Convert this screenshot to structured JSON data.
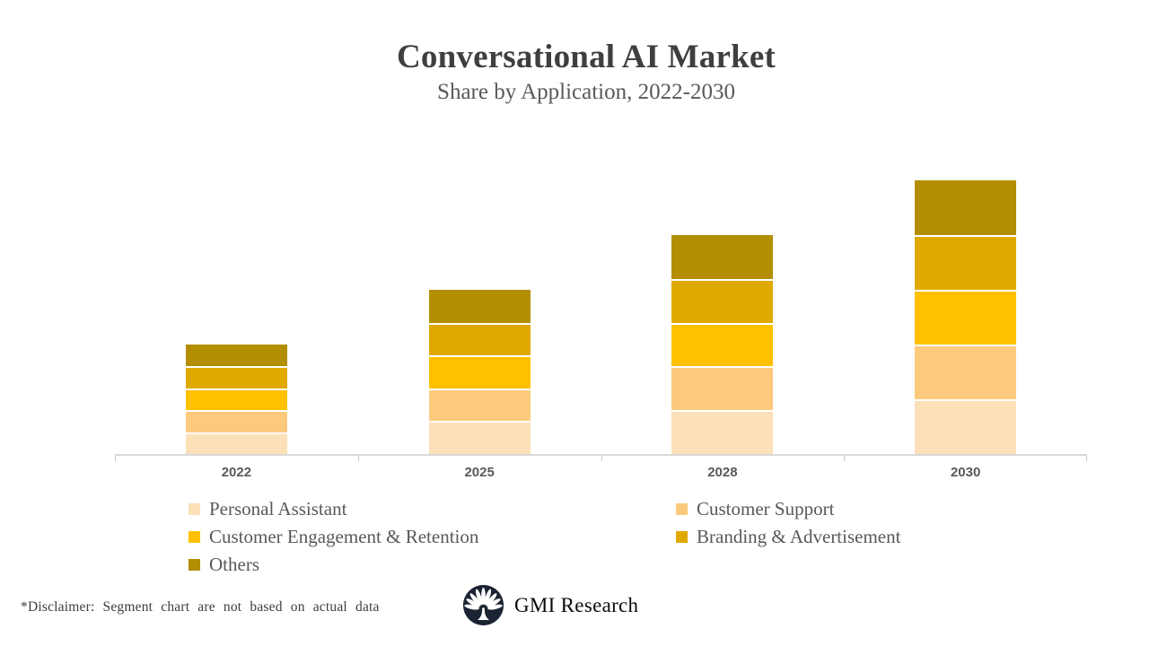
{
  "slide": {
    "title": "Conversational AI Market",
    "subtitle": "Share by Application, 2022-2030",
    "disclaimer": "*Disclaimer:  Segment chart are not based on actual data",
    "brand": {
      "name": "GMI Research"
    }
  },
  "colors": {
    "title_text": "#3f3f3f",
    "body_text": "#595959",
    "axis_line": "#d9d9d9",
    "tick": "#c9c9c9",
    "logo_navy": "#1b2433",
    "segment_gap": "#ffffff"
  },
  "chart_data": {
    "type": "bar",
    "stacked": true,
    "title": "Conversational AI Market",
    "subtitle": "Share by Application, 2022-2030",
    "categories": [
      "2022",
      "2025",
      "2028",
      "2030"
    ],
    "series": [
      {
        "name": "Personal Assistant",
        "color": "#fbe0b8",
        "values": [
          8,
          12,
          16,
          20
        ]
      },
      {
        "name": "Customer Support",
        "color": "#fcca7c",
        "values": [
          8,
          12,
          16,
          20
        ]
      },
      {
        "name": "Customer Engagement & Retention",
        "color": "#ffc000",
        "values": [
          8,
          12,
          16,
          20
        ]
      },
      {
        "name": "Branding & Advertisement",
        "color": "#e0a900",
        "values": [
          8,
          12,
          16,
          20
        ]
      },
      {
        "name": "Others",
        "color": "#b28e00",
        "values": [
          8,
          12,
          16,
          20
        ]
      }
    ],
    "units": "relative share (illustrative, per on-screen disclaimer)",
    "ylim": [
      0,
      100
    ],
    "y_axis_visible": false,
    "grid": false,
    "legend_position": "bottom"
  }
}
